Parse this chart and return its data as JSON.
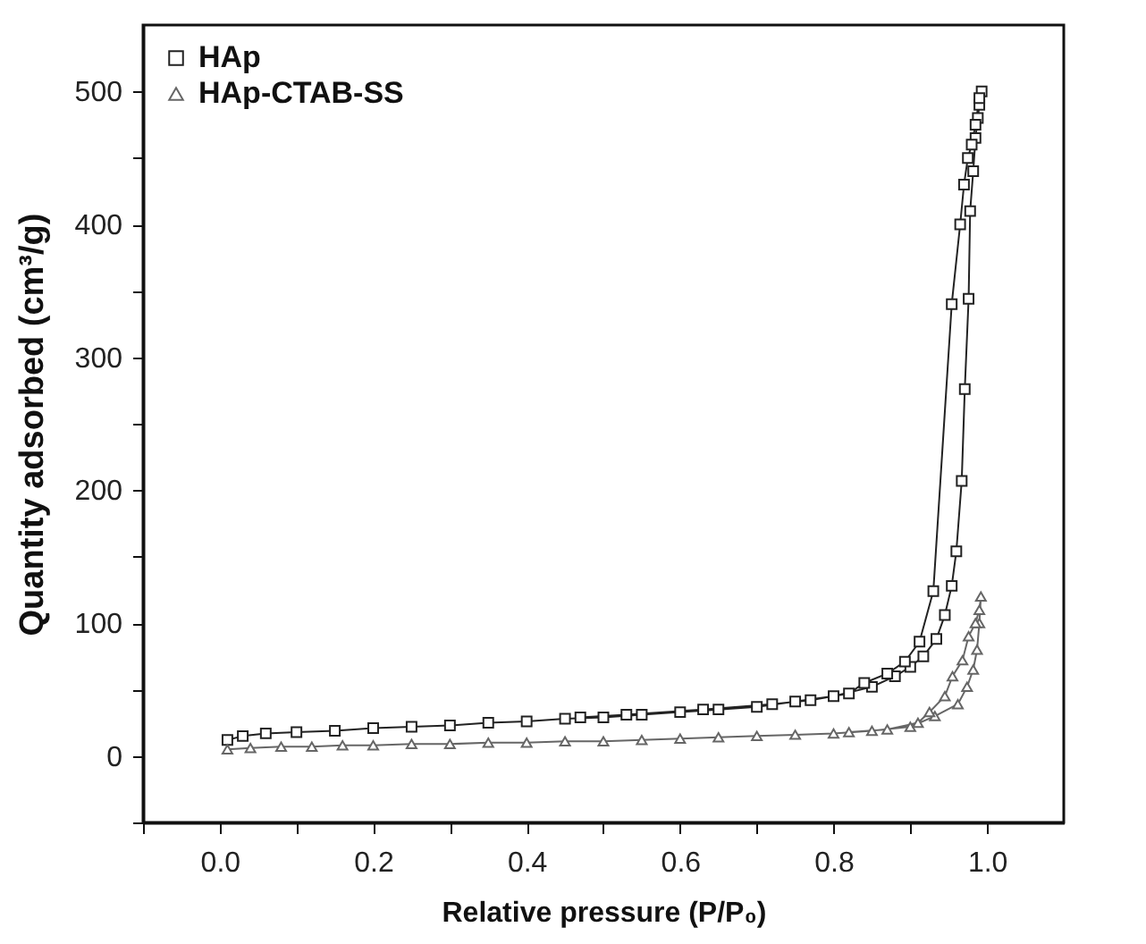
{
  "chart_data": {
    "type": "line",
    "xlabel": "Relative pressure (P/P₀)",
    "ylabel": "Quantity adsorbed (cm³/g)",
    "xlim": [
      -0.1,
      1.1
    ],
    "ylim": [
      -50,
      550
    ],
    "xticks": [
      {
        "value": -0.1,
        "label": null
      },
      {
        "value": 0,
        "label": "0.0"
      },
      {
        "value": 0.1,
        "label": null
      },
      0.2,
      {
        "value": 0.3,
        "label": null
      },
      0.4,
      {
        "value": 0.5,
        "label": null
      },
      0.6,
      {
        "value": 0.7,
        "label": null
      },
      0.8,
      {
        "value": 0.9,
        "label": null
      },
      {
        "value": 1,
        "label": "1.0"
      }
    ],
    "yticks": [
      {
        "value": -50,
        "label": null
      },
      0,
      {
        "value": 50,
        "label": null
      },
      100,
      {
        "value": 150,
        "label": null
      },
      200,
      {
        "value": 250,
        "label": null
      },
      300,
      {
        "value": 350,
        "label": null
      },
      400,
      {
        "value": 450,
        "label": null
      },
      500
    ],
    "grid": false,
    "legend": "top left",
    "line_style": "solid",
    "series": [
      {
        "name": "HAp",
        "color": "#222222",
        "marker": "square",
        "x": [
          0.01,
          0.03,
          0.06,
          0.1,
          0.15,
          0.2,
          0.25,
          0.3,
          0.35,
          0.4,
          0.45,
          0.5,
          0.55,
          0.6,
          0.65,
          0.7,
          0.75,
          0.8,
          0.85,
          0.88,
          0.9,
          0.917,
          0.934,
          0.945,
          0.954,
          0.96,
          0.967,
          0.971,
          0.976,
          0.978,
          0.982,
          0.985,
          0.988,
          0.99,
          0.993,
          0.99,
          0.985,
          0.98,
          0.975,
          0.97,
          0.965,
          0.954,
          0.93,
          0.912,
          0.893,
          0.87,
          0.84,
          0.82,
          0.77,
          0.72,
          0.63,
          0.53,
          0.47
        ],
        "values": [
          12,
          15,
          17,
          18,
          19,
          21,
          22,
          23,
          25,
          26,
          28,
          29,
          31,
          33,
          35,
          37,
          41,
          45,
          52,
          60,
          67,
          75,
          88,
          106,
          128,
          154,
          207,
          276,
          344,
          410,
          440,
          465,
          480,
          490,
          500,
          495,
          475,
          460,
          450,
          430,
          400,
          340,
          124,
          86,
          71,
          62,
          55,
          47,
          42,
          39,
          35,
          31,
          29
        ]
      },
      {
        "name": "HAp-CTAB-SS",
        "color": "#666666",
        "marker": "triangle",
        "x": [
          0.01,
          0.04,
          0.08,
          0.12,
          0.16,
          0.2,
          0.25,
          0.3,
          0.35,
          0.4,
          0.45,
          0.5,
          0.55,
          0.6,
          0.65,
          0.7,
          0.75,
          0.8,
          0.85,
          0.9,
          0.932,
          0.962,
          0.974,
          0.982,
          0.987,
          0.99,
          0.992,
          0.99,
          0.985,
          0.976,
          0.968,
          0.955,
          0.945,
          0.925,
          0.91,
          0.87,
          0.82
        ],
        "values": [
          5,
          6,
          7,
          7,
          8,
          8,
          9,
          9,
          10,
          10,
          11,
          11,
          12,
          13,
          14,
          15,
          16,
          17,
          19,
          22,
          30,
          39,
          52,
          65,
          80,
          100,
          120,
          110,
          100,
          90,
          72,
          60,
          45,
          33,
          25,
          20,
          18
        ]
      }
    ]
  }
}
